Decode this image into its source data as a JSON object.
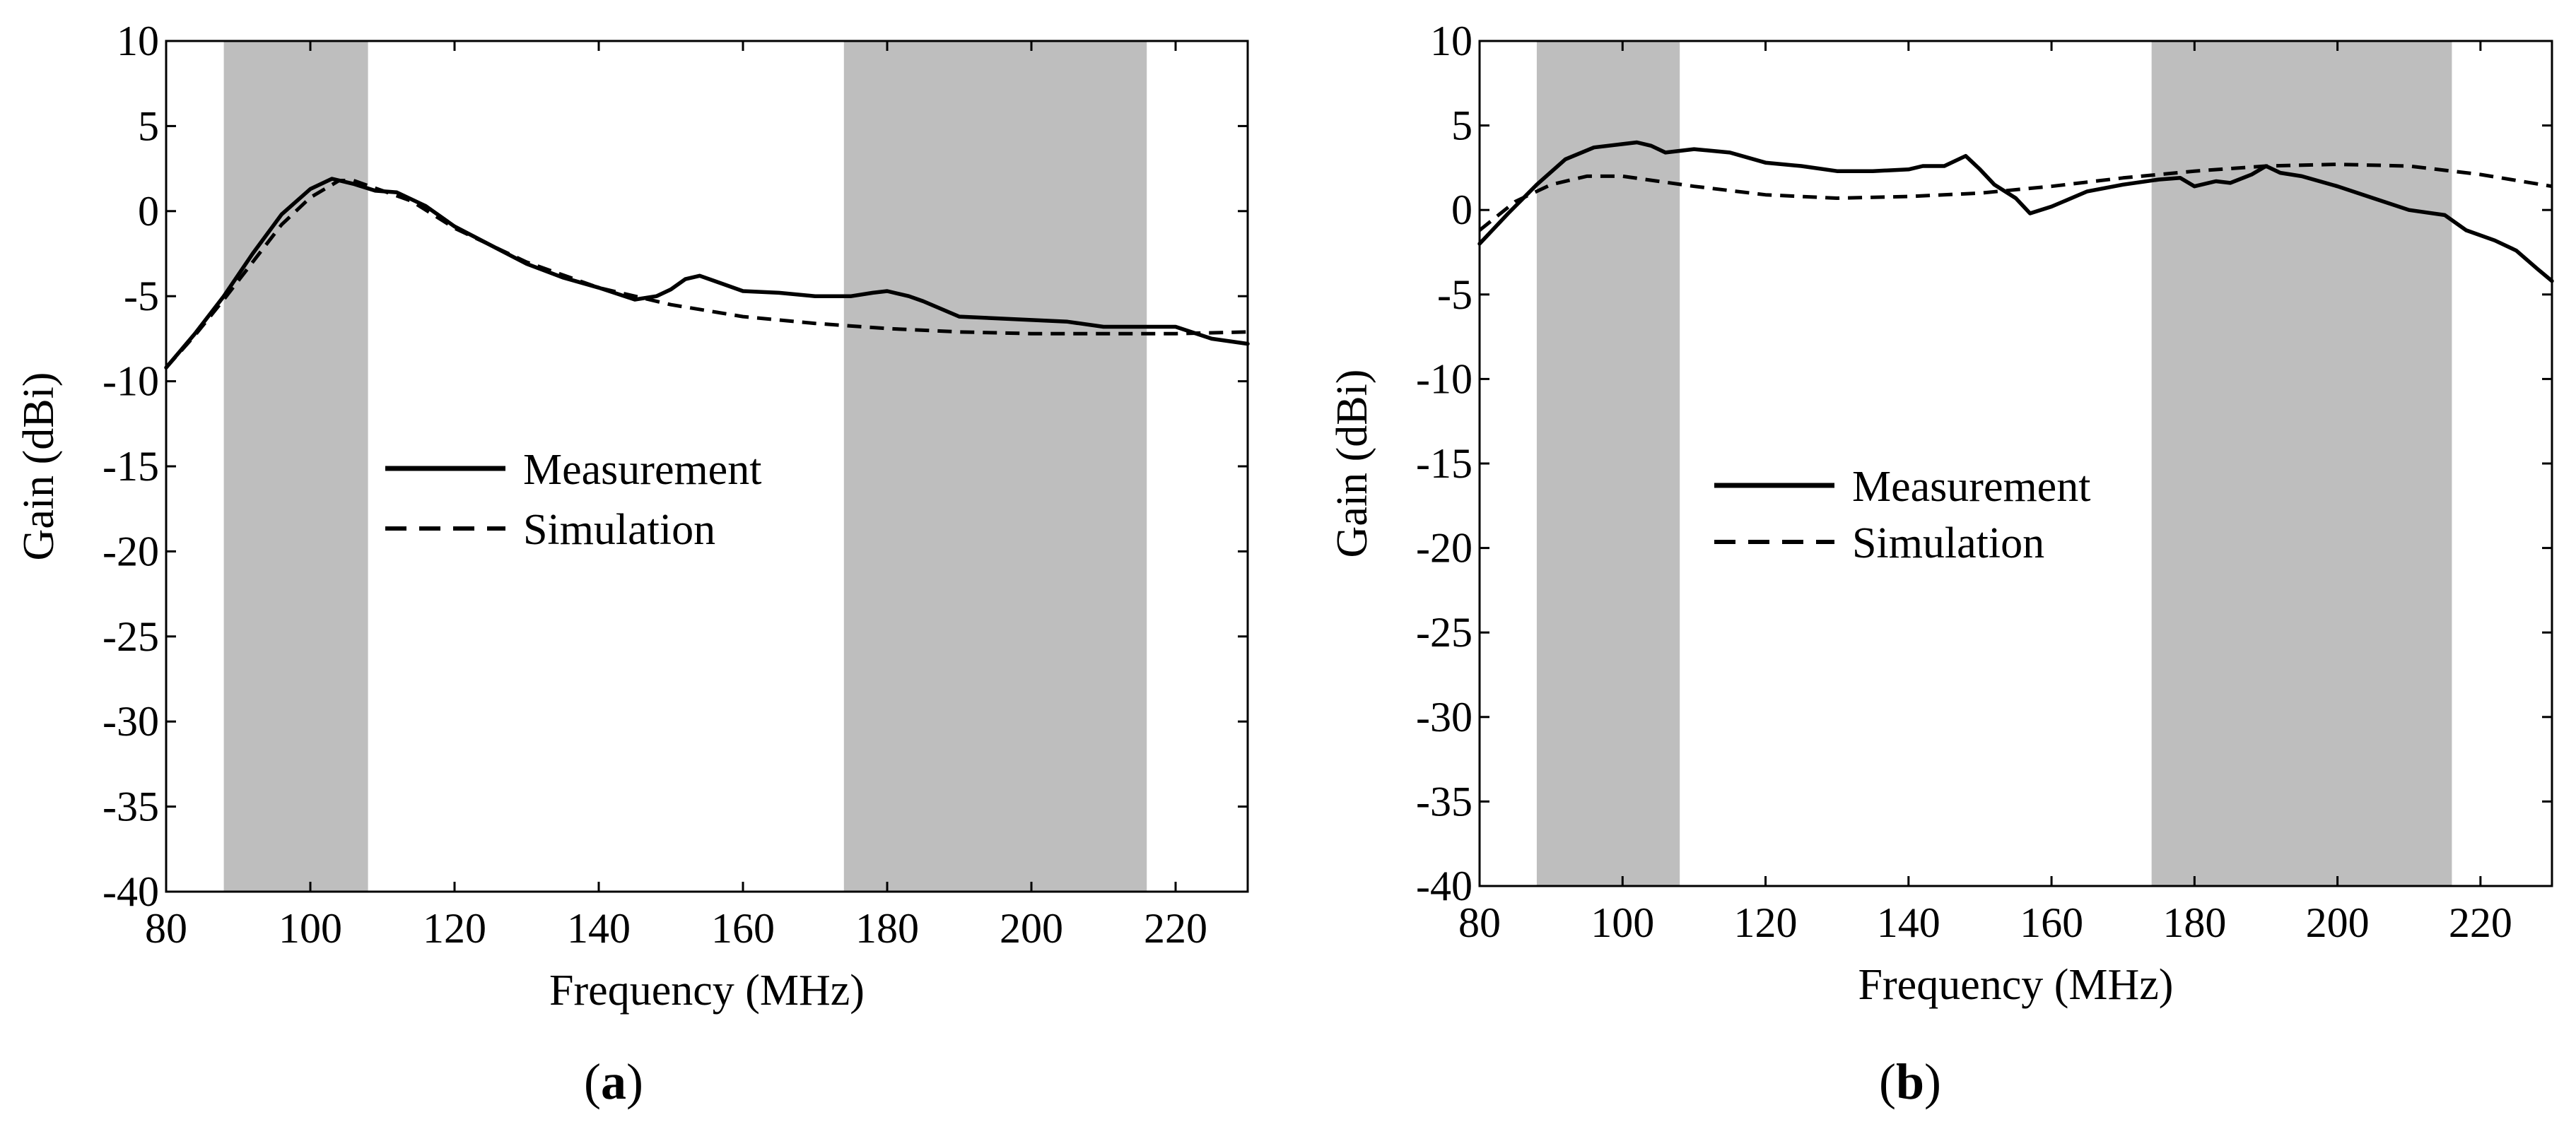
{
  "chart_data": [
    {
      "type": "line",
      "panel": "a",
      "caption": {
        "open": "(",
        "letter": "a",
        "close": ")"
      },
      "xlabel": "Frequency (MHz)",
      "ylabel": "Gain (dBi)",
      "xlim": [
        80,
        230
      ],
      "ylim": [
        -40,
        10
      ],
      "xticks": [
        80,
        100,
        120,
        140,
        160,
        180,
        200,
        220
      ],
      "yticks": [
        10,
        5,
        0,
        -5,
        -10,
        -15,
        -20,
        -25,
        -30,
        -35,
        -40
      ],
      "shaded_bands": [
        [
          88,
          108
        ],
        [
          174,
          216
        ]
      ],
      "legend": {
        "placement": "center-left",
        "entries": [
          "Measurement",
          "Simulation"
        ]
      },
      "series": [
        {
          "name": "Measurement",
          "style": "solid",
          "x": [
            80,
            84,
            88,
            92,
            96,
            100,
            103,
            106,
            109,
            112,
            116,
            120,
            125,
            130,
            135,
            140,
            145,
            148,
            150,
            152,
            154,
            156,
            160,
            165,
            170,
            175,
            178,
            180,
            183,
            185,
            190,
            195,
            200,
            205,
            210,
            215,
            220,
            225,
            230
          ],
          "y": [
            -9.2,
            -7.2,
            -5.0,
            -2.5,
            -0.2,
            1.3,
            1.9,
            1.6,
            1.2,
            1.1,
            0.3,
            -0.9,
            -2.0,
            -3.1,
            -3.9,
            -4.5,
            -5.2,
            -5.0,
            -4.6,
            -4.0,
            -3.8,
            -4.1,
            -4.7,
            -4.8,
            -5.0,
            -5.0,
            -4.8,
            -4.7,
            -5.0,
            -5.3,
            -6.2,
            -6.3,
            -6.4,
            -6.5,
            -6.8,
            -6.8,
            -6.8,
            -7.5,
            -7.8
          ]
        },
        {
          "name": "Simulation",
          "style": "dashed",
          "x": [
            80,
            84,
            88,
            92,
            96,
            100,
            104,
            106,
            110,
            114,
            120,
            125,
            130,
            140,
            150,
            160,
            170,
            180,
            190,
            200,
            210,
            220,
            230
          ],
          "y": [
            -9.2,
            -7.3,
            -5.2,
            -3.0,
            -0.8,
            0.8,
            1.8,
            1.8,
            1.2,
            0.6,
            -1.0,
            -2.0,
            -3.0,
            -4.5,
            -5.5,
            -6.2,
            -6.6,
            -6.9,
            -7.1,
            -7.2,
            -7.2,
            -7.2,
            -7.1
          ]
        }
      ]
    },
    {
      "type": "line",
      "panel": "b",
      "caption": {
        "open": "(",
        "letter": "b",
        "close": ")"
      },
      "xlabel": "Frequency (MHz)",
      "ylabel": "Gain (dBi)",
      "xlim": [
        80,
        230
      ],
      "ylim": [
        -40,
        10
      ],
      "xticks": [
        80,
        100,
        120,
        140,
        160,
        180,
        200,
        220
      ],
      "yticks": [
        10,
        5,
        0,
        -5,
        -10,
        -15,
        -20,
        -25,
        -30,
        -35,
        -40
      ],
      "shaded_bands": [
        [
          88,
          108
        ],
        [
          174,
          216
        ]
      ],
      "legend": {
        "placement": "center-left",
        "entries": [
          "Measurement",
          "Simulation"
        ]
      },
      "series": [
        {
          "name": "Measurement",
          "style": "solid",
          "x": [
            80,
            84,
            88,
            92,
            96,
            100,
            102,
            104,
            106,
            110,
            115,
            120,
            125,
            130,
            135,
            140,
            142,
            145,
            148,
            150,
            152,
            155,
            157,
            160,
            165,
            170,
            175,
            178,
            180,
            183,
            185,
            188,
            190,
            192,
            195,
            200,
            205,
            210,
            215,
            218,
            222,
            225,
            228,
            230
          ],
          "y": [
            -2.0,
            -0.2,
            1.5,
            3.0,
            3.7,
            3.9,
            4.0,
            3.8,
            3.4,
            3.6,
            3.4,
            2.8,
            2.6,
            2.3,
            2.3,
            2.4,
            2.6,
            2.6,
            3.2,
            2.4,
            1.5,
            0.7,
            -0.2,
            0.2,
            1.1,
            1.5,
            1.8,
            1.9,
            1.4,
            1.7,
            1.6,
            2.1,
            2.6,
            2.2,
            2.0,
            1.4,
            0.7,
            0.0,
            -0.3,
            -1.2,
            -1.8,
            -2.4,
            -3.5,
            -4.2
          ]
        },
        {
          "name": "Simulation",
          "style": "dashed",
          "x": [
            80,
            85,
            90,
            95,
            100,
            110,
            120,
            130,
            140,
            150,
            160,
            170,
            180,
            190,
            200,
            210,
            220,
            230
          ],
          "y": [
            -1.2,
            0.5,
            1.5,
            2.0,
            2.0,
            1.4,
            0.9,
            0.7,
            0.8,
            1.0,
            1.4,
            1.9,
            2.3,
            2.6,
            2.7,
            2.6,
            2.1,
            1.4
          ]
        }
      ]
    }
  ]
}
